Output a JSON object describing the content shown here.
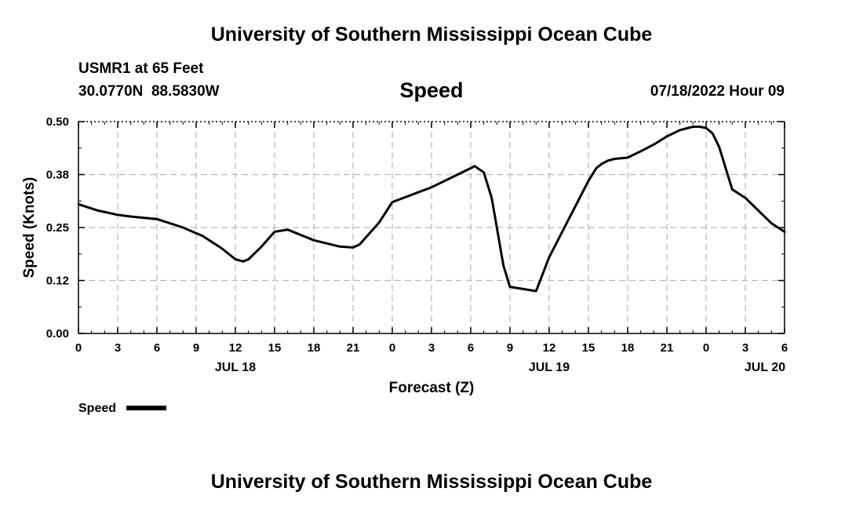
{
  "header": {
    "title": "University of Southern Mississippi Ocean Cube",
    "station": "USMR1 at 65 Feet",
    "coords": "30.0770N  88.5830W",
    "variable": "Speed",
    "datetime": "07/18/2022 Hour 09",
    "footer_title": "University of Southern Mississippi Ocean Cube"
  },
  "chart_data": {
    "type": "line",
    "title": "Speed",
    "xlabel": "Forecast (Z)",
    "ylabel": "Speed (Knots)",
    "ylim": [
      0,
      0.5
    ],
    "xlim": [
      0,
      54
    ],
    "yticks": [
      "0.00",
      "0.12",
      "0.25",
      "0.38",
      "0.50"
    ],
    "ytick_values": [
      0,
      0.125,
      0.25,
      0.375,
      0.5
    ],
    "xtick_labels": [
      "0",
      "3",
      "6",
      "9",
      "12",
      "15",
      "18",
      "21",
      "0",
      "3",
      "6",
      "9",
      "12",
      "15",
      "18",
      "21",
      "0",
      "3",
      "6"
    ],
    "day_labels": [
      {
        "hour": 12,
        "label": "JUL 18"
      },
      {
        "hour": 36,
        "label": "JUL 19"
      },
      {
        "hour": 52.5,
        "label": "JUL 20"
      }
    ],
    "grid": true,
    "legend": "bottom-left",
    "series": [
      {
        "name": "Speed",
        "color": "#000000",
        "x": [
          0,
          1.5,
          3,
          4,
          6,
          8,
          9.5,
          11,
          12,
          12.6,
          13,
          14,
          15,
          16,
          18,
          20,
          21,
          21.5,
          23,
          24,
          27,
          29,
          30,
          30.3,
          31,
          31.6,
          32,
          32.5,
          33,
          35,
          36,
          38,
          39,
          39.6,
          40,
          40.5,
          41,
          42,
          43,
          44,
          45,
          46,
          47,
          47.5,
          48,
          48.5,
          49,
          50,
          51,
          52,
          53,
          54
        ],
        "values": [
          0.305,
          0.29,
          0.28,
          0.276,
          0.27,
          0.25,
          0.23,
          0.2,
          0.175,
          0.17,
          0.175,
          0.205,
          0.24,
          0.245,
          0.22,
          0.205,
          0.203,
          0.21,
          0.262,
          0.31,
          0.345,
          0.375,
          0.39,
          0.395,
          0.38,
          0.32,
          0.25,
          0.16,
          0.11,
          0.1,
          0.18,
          0.3,
          0.36,
          0.39,
          0.4,
          0.408,
          0.412,
          0.415,
          0.43,
          0.446,
          0.465,
          0.48,
          0.488,
          0.488,
          0.485,
          0.472,
          0.44,
          0.34,
          0.32,
          0.29,
          0.26,
          0.24
        ]
      }
    ]
  }
}
